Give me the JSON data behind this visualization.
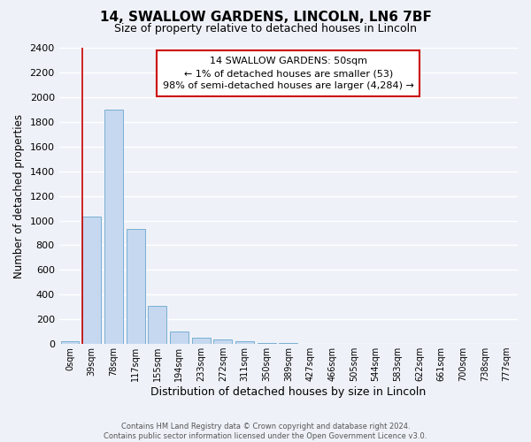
{
  "title": "14, SWALLOW GARDENS, LINCOLN, LN6 7BF",
  "subtitle": "Size of property relative to detached houses in Lincoln",
  "xlabel": "Distribution of detached houses by size in Lincoln",
  "ylabel": "Number of detached properties",
  "bar_labels": [
    "0sqm",
    "39sqm",
    "78sqm",
    "117sqm",
    "155sqm",
    "194sqm",
    "233sqm",
    "272sqm",
    "311sqm",
    "350sqm",
    "389sqm",
    "427sqm",
    "466sqm",
    "505sqm",
    "544sqm",
    "583sqm",
    "622sqm",
    "661sqm",
    "700sqm",
    "738sqm",
    "777sqm"
  ],
  "bar_values": [
    20,
    1030,
    1900,
    930,
    310,
    100,
    50,
    35,
    20,
    10,
    5,
    0,
    0,
    0,
    0,
    0,
    0,
    0,
    0,
    0,
    0
  ],
  "bar_color": "#c5d8ef",
  "bar_edge_color": "#7aaed4",
  "marker_color": "#cc0000",
  "annotation_text": "14 SWALLOW GARDENS: 50sqm\n← 1% of detached houses are smaller (53)\n98% of semi-detached houses are larger (4,284) →",
  "annotation_box_color": "#ffffff",
  "annotation_box_edge": "#cc0000",
  "ylim": [
    0,
    2400
  ],
  "yticks": [
    0,
    200,
    400,
    600,
    800,
    1000,
    1200,
    1400,
    1600,
    1800,
    2000,
    2200,
    2400
  ],
  "footer1": "Contains HM Land Registry data © Crown copyright and database right 2024.",
  "footer2": "Contains public sector information licensed under the Open Government Licence v3.0.",
  "bg_color": "#eef2f8",
  "plot_bg_color": "#eef2f8",
  "grid_color": "#ffffff",
  "title_fontsize": 11,
  "subtitle_fontsize": 9,
  "xlabel_fontsize": 9,
  "ylabel_fontsize": 8.5,
  "annotation_fontsize": 8,
  "tick_fontsize": 8,
  "xtick_fontsize": 7
}
